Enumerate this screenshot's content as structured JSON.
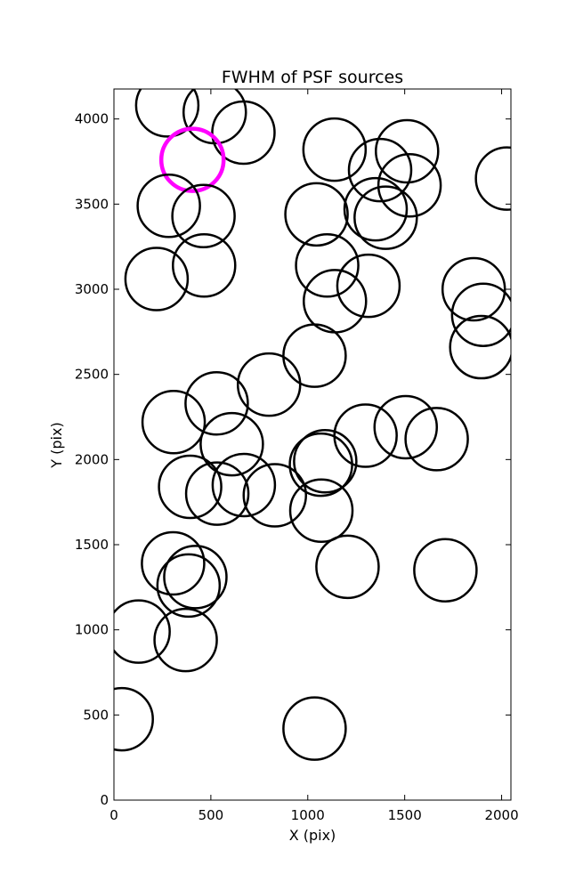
{
  "chart_data": {
    "type": "scatter",
    "title": "FWHM of PSF sources",
    "xlabel": "X (pix)",
    "ylabel": "Y (pix)",
    "xlim": [
      0,
      2048
    ],
    "ylim": [
      0,
      4176
    ],
    "xticks": [
      0,
      500,
      1000,
      1500,
      2000
    ],
    "yticks": [
      0,
      500,
      1000,
      1500,
      2000,
      2500,
      3000,
      3500,
      4000
    ],
    "grid": false,
    "marker": "circle",
    "colors": {
      "default": "#000000",
      "highlight": "#ff00ff"
    },
    "series": [
      {
        "x": [
          275,
          520,
          668,
          405,
          283,
          462,
          220,
          465,
          1045,
          1138,
          1373,
          1512,
          1525,
          1350,
          1402,
          2028,
          1100,
          1140,
          1313,
          1035,
          1856,
          1905,
          1895,
          800,
          530,
          308,
          608,
          1298,
          1505,
          1665,
          1090,
          1068,
          393,
          670,
          533,
          830,
          1070,
          305,
          420,
          385,
          1205,
          1710,
          127,
          370,
          40,
          1035
        ],
        "y": [
          4080,
          4040,
          3920,
          3760,
          3490,
          3430,
          3060,
          3140,
          3440,
          3820,
          3700,
          3810,
          3610,
          3470,
          3420,
          3650,
          3140,
          2930,
          3020,
          2610,
          3000,
          2850,
          2660,
          2440,
          2330,
          2220,
          2090,
          2140,
          2190,
          2120,
          1990,
          1970,
          1840,
          1850,
          1800,
          1790,
          1700,
          1390,
          1310,
          1260,
          1370,
          1350,
          990,
          940,
          475,
          420
        ],
        "highlight": [
          false,
          false,
          false,
          true,
          false,
          false,
          false,
          false,
          false,
          false,
          false,
          false,
          false,
          false,
          false,
          false,
          false,
          false,
          false,
          false,
          false,
          false,
          false,
          false,
          false,
          false,
          false,
          false,
          false,
          false,
          false,
          false,
          false,
          false,
          false,
          false,
          false,
          false,
          false,
          false,
          false,
          false,
          false,
          false,
          false,
          false
        ]
      }
    ]
  }
}
